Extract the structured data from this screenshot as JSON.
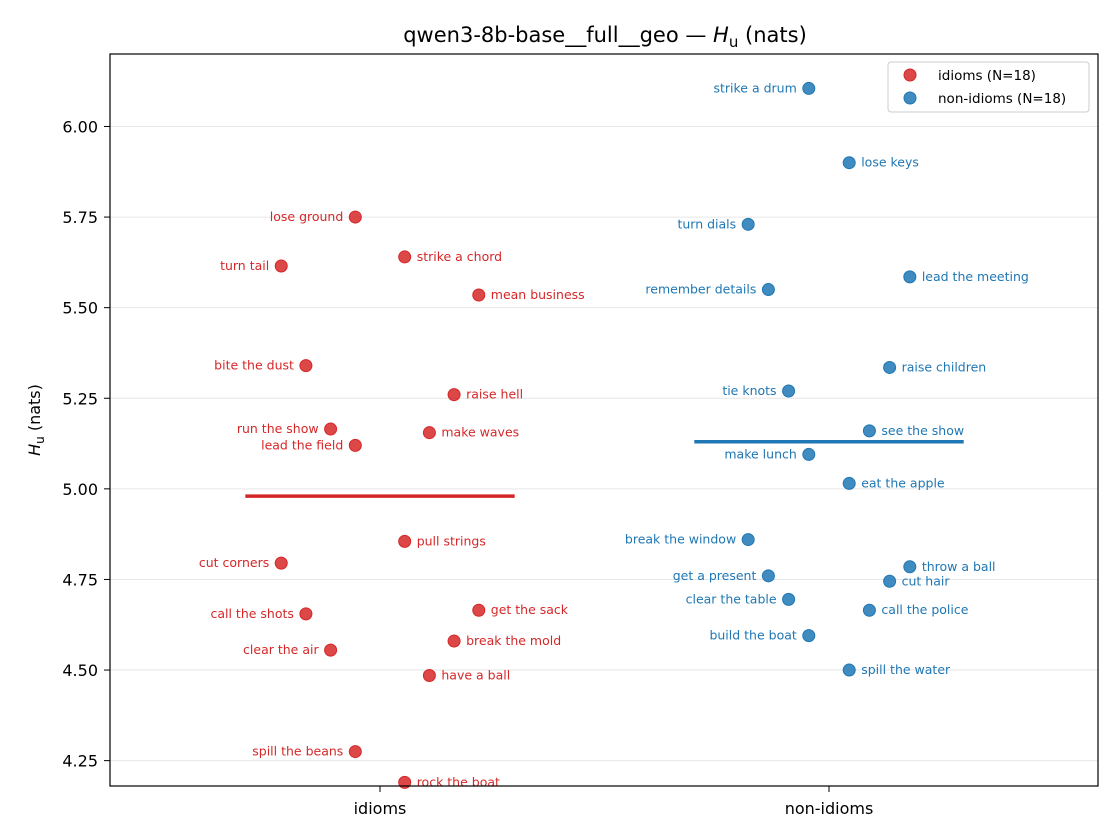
{
  "chart_data": {
    "type": "scatter",
    "title_main": "qwen3-8b-base__full__geo — ",
    "title_var": "H",
    "title_sub": "u",
    "title_unit": " (nats)",
    "ylabel_var": "H",
    "ylabel_sub": "u",
    "ylabel_unit": " (nats)",
    "ylim": [
      4.18,
      6.2
    ],
    "yticks": [
      4.25,
      4.5,
      4.75,
      5.0,
      5.25,
      5.5,
      5.75,
      6.0
    ],
    "ytick_labels": [
      "4.25",
      "4.50",
      "4.75",
      "5.00",
      "5.25",
      "5.50",
      "5.75",
      "6.00"
    ],
    "grid": true,
    "legend_position": "top-right",
    "categories": [
      "idioms",
      "non-idioms"
    ],
    "series": [
      {
        "name": "idioms (N=18)",
        "color": "#d62728",
        "mean": 4.98,
        "points": [
          {
            "label": "lose ground",
            "x": -0.055,
            "y": 5.75
          },
          {
            "label": "strike a chord",
            "x": 0.055,
            "y": 5.64
          },
          {
            "label": "turn tail",
            "x": -0.22,
            "y": 5.615
          },
          {
            "label": "mean business",
            "x": 0.22,
            "y": 5.535
          },
          {
            "label": "bite the dust",
            "x": -0.165,
            "y": 5.34
          },
          {
            "label": "raise hell",
            "x": 0.165,
            "y": 5.26
          },
          {
            "label": "run the show",
            "x": -0.11,
            "y": 5.165
          },
          {
            "label": "make waves",
            "x": 0.11,
            "y": 5.155
          },
          {
            "label": "lead the field",
            "x": -0.055,
            "y": 5.12
          },
          {
            "label": "pull strings",
            "x": 0.055,
            "y": 4.855
          },
          {
            "label": "cut corners",
            "x": -0.22,
            "y": 4.795
          },
          {
            "label": "get the sack",
            "x": 0.22,
            "y": 4.665
          },
          {
            "label": "call the shots",
            "x": -0.165,
            "y": 4.655
          },
          {
            "label": "break the mold",
            "x": 0.165,
            "y": 4.58
          },
          {
            "label": "clear the air",
            "x": -0.11,
            "y": 4.555
          },
          {
            "label": "have a ball",
            "x": 0.11,
            "y": 4.485
          },
          {
            "label": "spill the beans",
            "x": -0.055,
            "y": 4.275
          },
          {
            "label": "rock the boat",
            "x": 0.055,
            "y": 4.19
          }
        ]
      },
      {
        "name": "non-idioms (N=18)",
        "color": "#1f77b4",
        "mean": 5.13,
        "points": [
          {
            "label": "strike a drum",
            "x": -0.045,
            "y": 6.105
          },
          {
            "label": "lose keys",
            "x": 0.045,
            "y": 5.9
          },
          {
            "label": "turn dials",
            "x": -0.18,
            "y": 5.73
          },
          {
            "label": "lead the meeting",
            "x": 0.18,
            "y": 5.585
          },
          {
            "label": "remember details",
            "x": -0.135,
            "y": 5.55
          },
          {
            "label": "raise children",
            "x": 0.135,
            "y": 5.335
          },
          {
            "label": "tie knots",
            "x": -0.09,
            "y": 5.27
          },
          {
            "label": "see the show",
            "x": 0.09,
            "y": 5.16
          },
          {
            "label": "make lunch",
            "x": -0.045,
            "y": 5.095
          },
          {
            "label": "eat the apple",
            "x": 0.045,
            "y": 5.015
          },
          {
            "label": "break the window",
            "x": -0.18,
            "y": 4.86
          },
          {
            "label": "throw a ball",
            "x": 0.18,
            "y": 4.785
          },
          {
            "label": "get a present",
            "x": -0.135,
            "y": 4.76
          },
          {
            "label": "cut hair",
            "x": 0.135,
            "y": 4.745
          },
          {
            "label": "clear the table",
            "x": -0.09,
            "y": 4.695
          },
          {
            "label": "call the police",
            "x": 0.09,
            "y": 4.665
          },
          {
            "label": "build the boat",
            "x": -0.045,
            "y": 4.595
          },
          {
            "label": "spill the water",
            "x": 0.045,
            "y": 4.5
          }
        ]
      }
    ]
  }
}
